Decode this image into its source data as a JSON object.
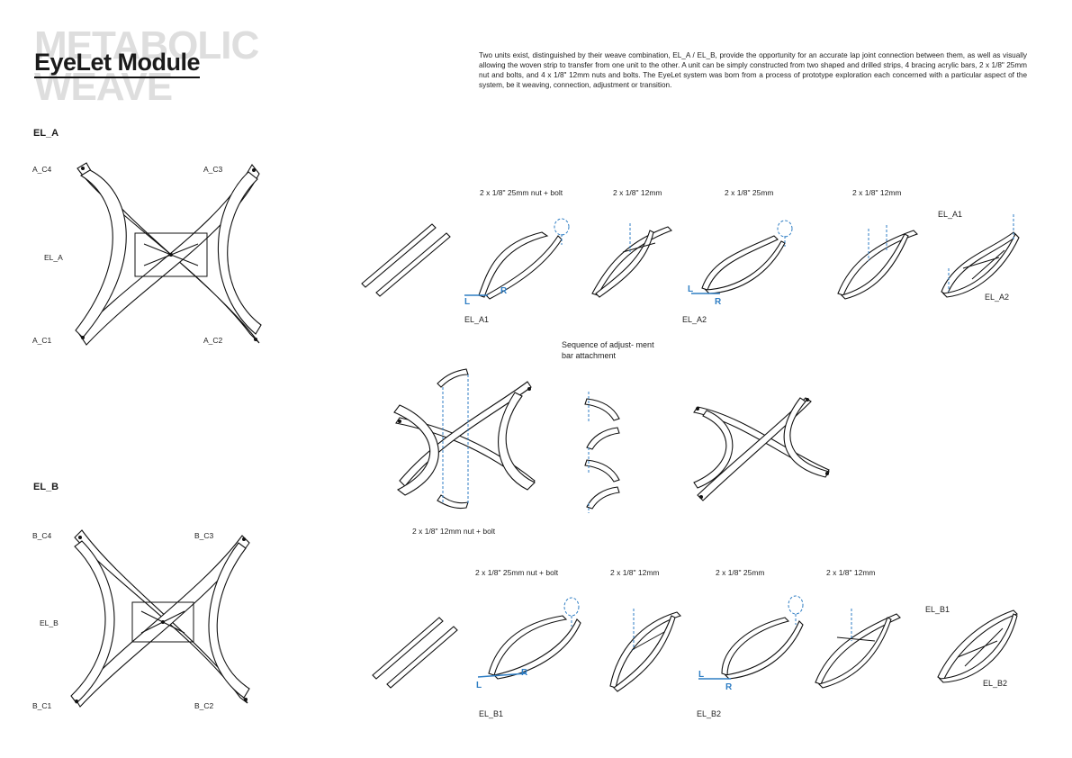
{
  "header": {
    "ghost_line1": "METABOLIC",
    "ghost_line2": "WEAVE",
    "title": "EyeLet Module",
    "description": "Two units exist, distinguished by their weave combination, EL_A / EL_B, provide the opportunity for an accurate lap joint connection between them, as well as visually allowing the woven strip to transfer from one unit to the other. A unit can be simply constructed from two shaped and drilled strips, 4 bracing acrylic bars,  2 x 1/8\" 25mm nut and bolts,  and 4 x 1/8\" 12mm nuts and bolts. The EyeLet system was born from a process of prototype exploration each concerned with a particular aspect of the system, be it weaving, connection, adjustment or transition."
  },
  "el_a": {
    "section": "EL_A",
    "plan_labels": {
      "c4": "A_C4",
      "c3": "A_C3",
      "center": "EL_A",
      "c1": "A_C1",
      "c2": "A_C2"
    },
    "specs": [
      "2 x 1/8\" 25mm nut + bolt",
      "2 x 1/8\" 12mm",
      "2 x 1/8\" 25mm",
      "2 x 1/8\" 12mm"
    ],
    "captions": {
      "a1": "EL_A1",
      "a2": "EL_A2",
      "final_top": "EL_A1",
      "final_bottom": "EL_A2"
    },
    "markers": {
      "left": "L",
      "right": "R"
    }
  },
  "middle": {
    "note": "Sequence of adjust- ment bar attachment",
    "spec": "2 x 1/8\" 12mm nut + bolt"
  },
  "el_b": {
    "section": "EL_B",
    "plan_labels": {
      "c4": "B_C4",
      "c3": "B_C3",
      "center": "EL_B",
      "c1": "B_C1",
      "c2": "B_C2"
    },
    "specs": [
      "2 x 1/8\" 25mm nut + bolt",
      "2 x 1/8\" 12mm",
      "2 x 1/8\" 25mm",
      "2 x 1/8\" 12mm"
    ],
    "captions": {
      "b1": "EL_B1",
      "b2": "EL_B2",
      "final_top": "EL_B1",
      "final_bottom": "EL_B2"
    },
    "markers": {
      "left": "L",
      "right": "R"
    }
  },
  "colors": {
    "accent": "#2f7ec4",
    "ghost": "#dedede",
    "ink": "#111111"
  }
}
